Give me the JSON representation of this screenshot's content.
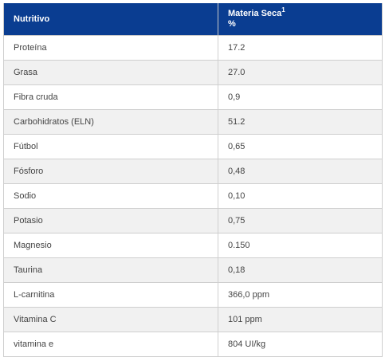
{
  "table": {
    "header": {
      "col1": "Nutritivo",
      "col2_line1": "Materia Seca",
      "col2_sup": "1",
      "col2_line2": "%"
    },
    "rows": [
      {
        "nutrient": "Proteína",
        "value": "17.2"
      },
      {
        "nutrient": "Grasa",
        "value": "27.0"
      },
      {
        "nutrient": "Fibra cruda",
        "value": "0,9"
      },
      {
        "nutrient": "Carbohidratos (ELN)",
        "value": "51.2"
      },
      {
        "nutrient": "Fútbol",
        "value": "0,65"
      },
      {
        "nutrient": "Fósforo",
        "value": "0,48"
      },
      {
        "nutrient": "Sodio",
        "value": "0,10"
      },
      {
        "nutrient": "Potasio",
        "value": "0,75"
      },
      {
        "nutrient": "Magnesio",
        "value": "0.150"
      },
      {
        "nutrient": "Taurina",
        "value": "0,18"
      },
      {
        "nutrient": "L-carnitina",
        "value": "366,0 ppm"
      },
      {
        "nutrient": "Vitamina C",
        "value": "101 ppm"
      },
      {
        "nutrient": "vitamina e",
        "value": "804 UI/kg"
      }
    ]
  },
  "colors": {
    "header_bg": "#0a3d91",
    "stripe_bg": "#f1f1f1"
  }
}
